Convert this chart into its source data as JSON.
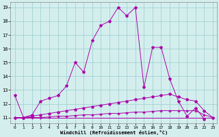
{
  "xlabel": "Windchill (Refroidissement éolien,°C)",
  "x_values": [
    0,
    1,
    2,
    3,
    4,
    5,
    6,
    7,
    8,
    9,
    10,
    11,
    12,
    13,
    14,
    15,
    16,
    17,
    18,
    19,
    20,
    21,
    22,
    23
  ],
  "series": [
    [
      12.6,
      11.0,
      11.2,
      12.2,
      12.4,
      12.6,
      13.3,
      15.0,
      14.3,
      16.6,
      17.7,
      18.0,
      19.0,
      18.4,
      19.0,
      13.2,
      16.1,
      16.1,
      13.8,
      12.2,
      11.1,
      11.7,
      10.9,
      null
    ],
    [
      11.0,
      11.0,
      11.1,
      11.2,
      11.3,
      11.4,
      11.5,
      11.6,
      11.7,
      11.8,
      11.9,
      12.0,
      12.1,
      12.2,
      12.3,
      12.4,
      12.5,
      12.6,
      12.7,
      12.5,
      12.3,
      12.2,
      11.5,
      11.0
    ],
    [
      11.0,
      11.0,
      11.0,
      11.0,
      11.05,
      11.1,
      11.1,
      11.15,
      11.2,
      11.2,
      11.25,
      11.3,
      11.3,
      11.35,
      11.4,
      11.4,
      11.45,
      11.5,
      11.5,
      11.5,
      11.5,
      11.5,
      11.2,
      11.0
    ],
    [
      11.0,
      11.0,
      11.0,
      11.0,
      11.0,
      11.0,
      11.0,
      11.0,
      11.0,
      11.0,
      11.0,
      11.0,
      11.0,
      11.0,
      11.0,
      11.0,
      11.0,
      11.0,
      11.0,
      11.0,
      11.0,
      11.0,
      11.0,
      11.0
    ]
  ],
  "line_color": "#aa00aa",
  "background_color": "#d4eeee",
  "grid_color": "#99cccc",
  "ylim": [
    10.6,
    19.4
  ],
  "yticks": [
    11,
    12,
    13,
    14,
    15,
    16,
    17,
    18,
    19
  ],
  "xticks": [
    0,
    1,
    2,
    3,
    4,
    5,
    6,
    7,
    8,
    9,
    10,
    11,
    12,
    13,
    14,
    15,
    16,
    17,
    18,
    19,
    20,
    21,
    22,
    23
  ]
}
